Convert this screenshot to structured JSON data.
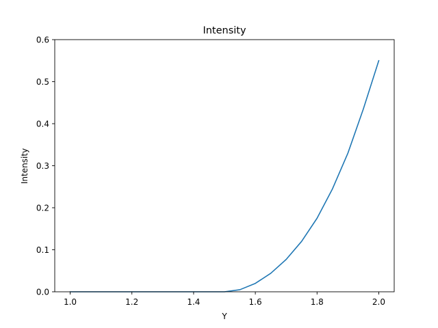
{
  "chart_data": {
    "type": "line",
    "title": "Intensity",
    "xlabel": "Y",
    "ylabel": "Intensity",
    "xlim": [
      0.95,
      2.05
    ],
    "ylim": [
      0.0,
      0.6
    ],
    "xticks": [
      1.0,
      1.2,
      1.4,
      1.6,
      1.8,
      2.0
    ],
    "xtick_labels": [
      "1.0",
      "1.2",
      "1.4",
      "1.6",
      "1.8",
      "2.0"
    ],
    "yticks": [
      0.0,
      0.1,
      0.2,
      0.3,
      0.4,
      0.5,
      0.6
    ],
    "ytick_labels": [
      "0.0",
      "0.1",
      "0.2",
      "0.3",
      "0.4",
      "0.5",
      "0.6"
    ],
    "grid": false,
    "series": [
      {
        "color": "#1f77b4",
        "x": [
          1.0,
          1.05,
          1.1,
          1.15,
          1.2,
          1.25,
          1.3,
          1.35,
          1.4,
          1.45,
          1.5,
          1.55,
          1.6,
          1.65,
          1.7,
          1.75,
          1.8,
          1.85,
          1.9,
          1.95,
          2.0
        ],
        "y": [
          0.0,
          0.0,
          0.0,
          0.0,
          0.0,
          0.0,
          0.0,
          0.0,
          0.0,
          0.0,
          0.0,
          0.005,
          0.02,
          0.044,
          0.077,
          0.12,
          0.175,
          0.245,
          0.33,
          0.435,
          0.55
        ]
      }
    ]
  }
}
